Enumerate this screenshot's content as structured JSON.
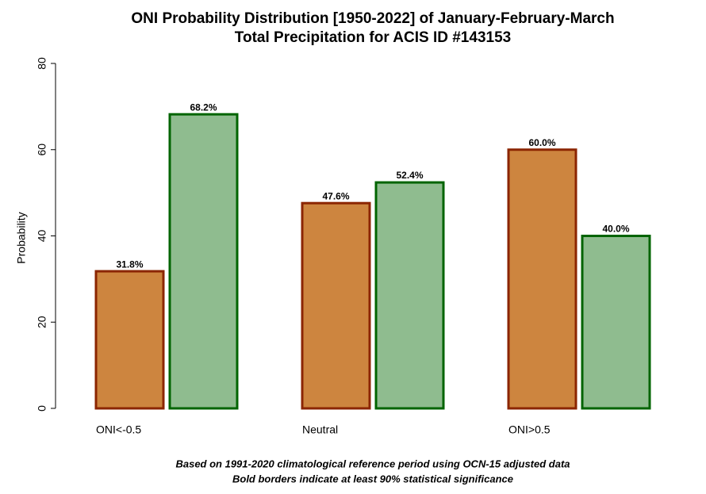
{
  "chart_data": {
    "type": "bar",
    "title": "ONI Probability Distribution [1950-2022] of January-February-March",
    "subtitle": "Total Precipitation for ACIS ID #143153",
    "y_label": "Probability",
    "categories": [
      "ONI<-0.5",
      "Neutral",
      "ONI>0.5"
    ],
    "series": [
      {
        "color": "#cd853f",
        "border": "#8b2500",
        "values": [
          31.8,
          47.6,
          60.0
        ],
        "value_labels": [
          "31.8%",
          "47.6%",
          "60.0%"
        ]
      },
      {
        "color": "#8fbc8f",
        "border": "#006400",
        "values": [
          68.2,
          52.4,
          40.0
        ],
        "value_labels": [
          "68.2%",
          "52.4%",
          "40.0%"
        ]
      }
    ],
    "ylim": [
      0,
      80
    ],
    "yticks": [
      0,
      20,
      40,
      60,
      80
    ],
    "footnotes": [
      "Based on 1991-2020 climatological reference period using OCN-15 adjusted data",
      "Bold borders indicate at least 90% statistical significance"
    ]
  }
}
